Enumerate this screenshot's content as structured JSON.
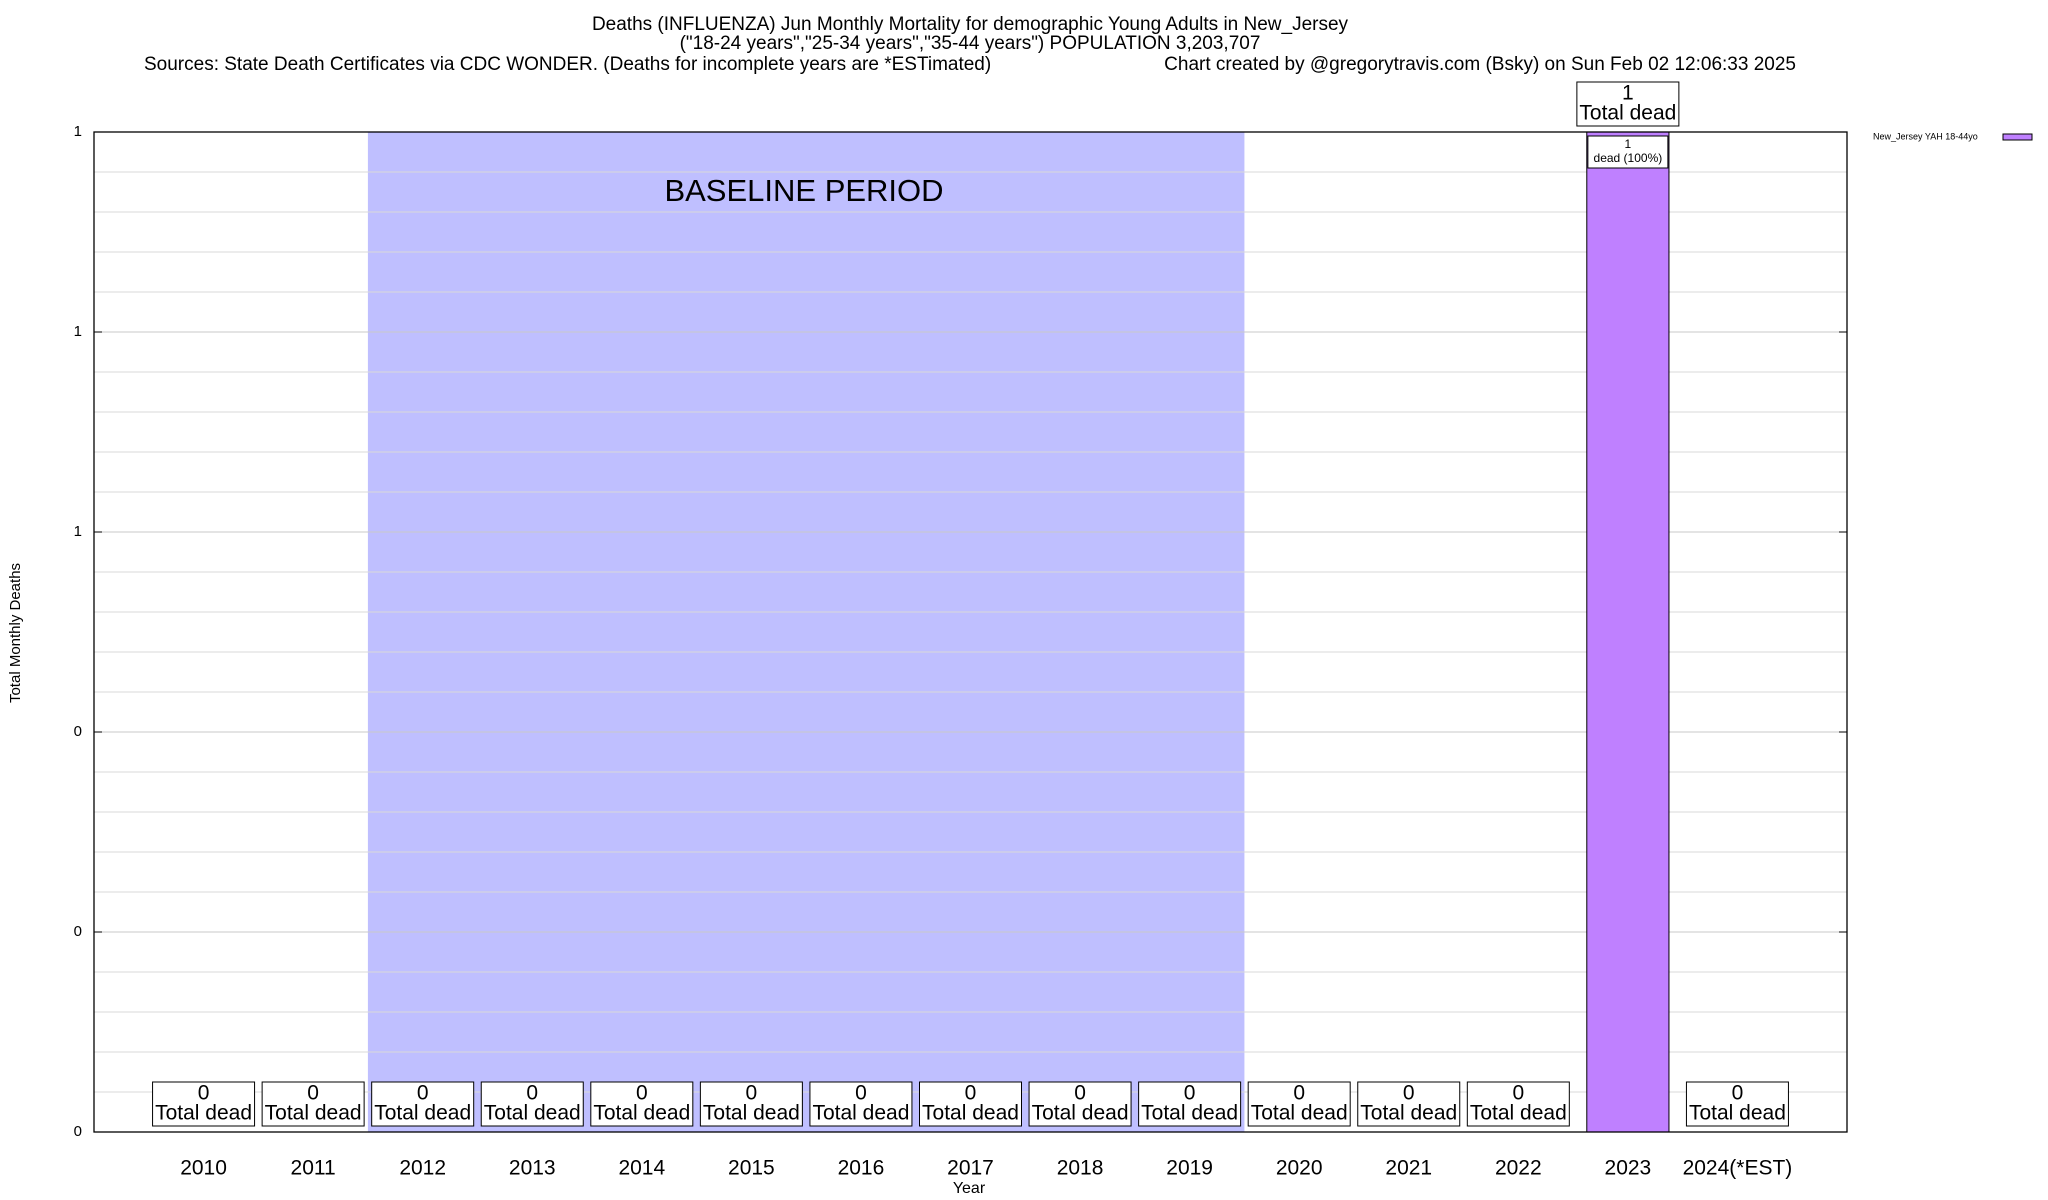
{
  "chart_data": {
    "type": "bar",
    "title": "Deaths (INFLUENZA) Jun Monthly Mortality for demographic Young Adults in New_Jersey",
    "subtitle": "(\"18-24 years\",\"25-34 years\",\"35-44 years\") POPULATION 3,203,707",
    "sources": "Sources: State Death Certificates via CDC WONDER. (Deaths for incomplete years are *ESTimated)",
    "credit": "Chart created by @gregorytravis.com (Bsky) on Sun Feb 02 12:06:33 2025",
    "x_label": "Year",
    "y_label": "Total Monthly Deaths",
    "categories": [
      "2010",
      "2011",
      "2012",
      "2013",
      "2014",
      "2015",
      "2016",
      "2017",
      "2018",
      "2019",
      "2020",
      "2021",
      "2022",
      "2023",
      "2024(*EST)"
    ],
    "series": [
      {
        "name": "New_Jersey YAH 18-44yo",
        "color": "#bf80ff",
        "values": [
          0,
          0,
          0,
          0,
          0,
          0,
          0,
          0,
          0,
          0,
          0,
          0,
          0,
          1,
          0
        ]
      }
    ],
    "total_label": "Total dead",
    "segment_label": "dead (100%)",
    "baseline": {
      "label": "BASELINE PERIOD",
      "start": "2012",
      "end": "2019",
      "color": "#bfbfff"
    },
    "ylim": [
      0,
      1
    ],
    "yticks": [
      0,
      {
        "value": 0.2,
        "label": "0"
      },
      {
        "value": 0.4,
        "label": "0"
      },
      {
        "value": 0.6,
        "label": "1"
      },
      {
        "value": 0.8,
        "label": "1"
      },
      1
    ],
    "grid": true,
    "legend": "top-right"
  }
}
